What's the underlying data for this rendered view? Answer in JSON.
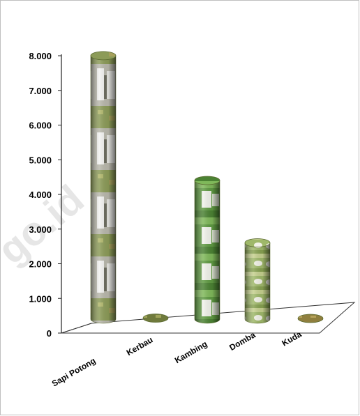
{
  "chart_data": {
    "type": "bar",
    "title": "",
    "xlabel": "",
    "ylabel": "",
    "ylim": [
      0,
      8000
    ],
    "yticks": [
      "0",
      "1.000",
      "2.000",
      "3.000",
      "4.000",
      "5.000",
      "6.000",
      "7.000",
      "8.000"
    ],
    "categories": [
      "Sapi Potong",
      "Kerbau",
      "Kambing",
      "Domba",
      "Kuda"
    ],
    "values": [
      7600,
      30,
      4000,
      2200,
      20
    ],
    "bar_fill": [
      "cattle",
      "buffalo",
      "goat",
      "sheep",
      "horse"
    ],
    "colors": {
      "cattle": "#c9c6b4",
      "goat": "#5f9a42",
      "sheep": "#9fb86a",
      "small": "#8a8a55"
    },
    "legend": "none",
    "grid": false
  },
  "watermark": "go.id"
}
